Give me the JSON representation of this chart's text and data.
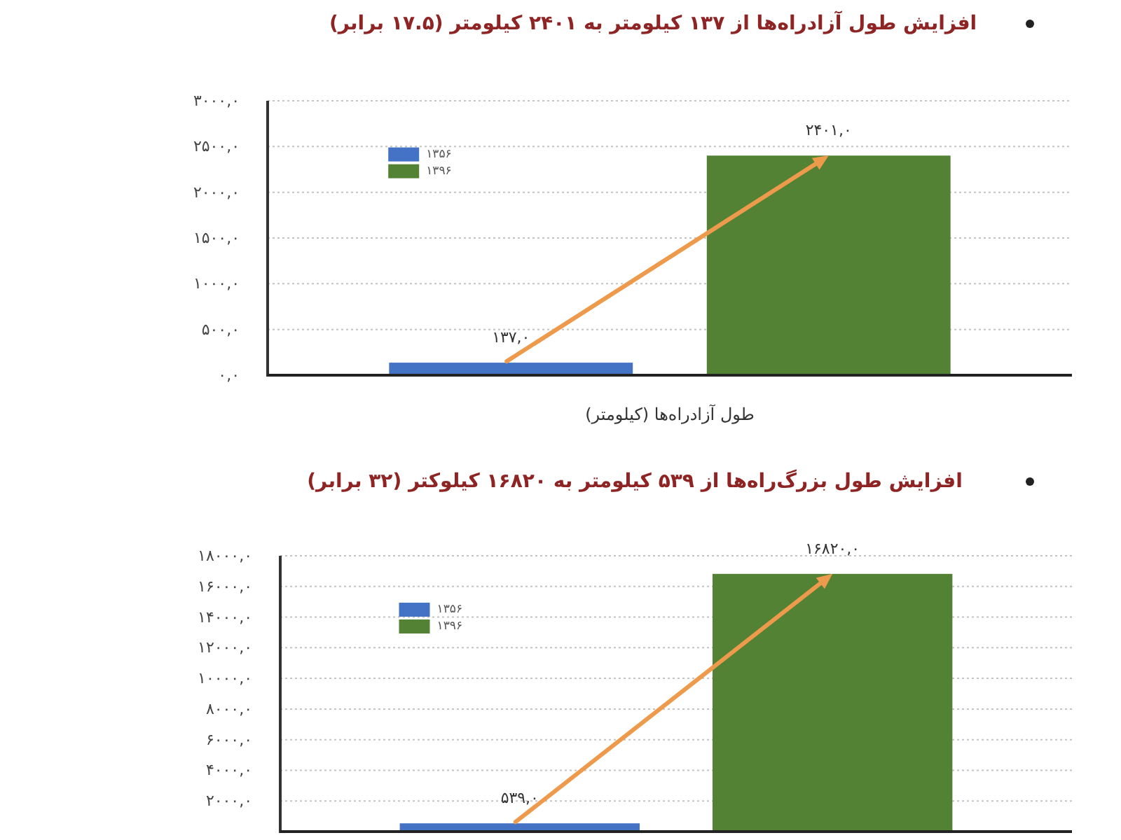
{
  "chart_data": [
    {
      "type": "bar",
      "title": "افزایش طول آزادراه‌ها از ۱۳۷ کیلومتر به ۲۴۰۱ کیلومتر (۱۷.۵ برابر)",
      "categories": [
        "طول آزادراه‌ها (کیلومتر)"
      ],
      "series": [
        {
          "name": "۱۳۵۶",
          "color": "#4472c4",
          "values": [
            137
          ],
          "value_labels": [
            "۱۳۷,۰"
          ]
        },
        {
          "name": "۱۳۹۶",
          "color": "#548235",
          "values": [
            2401
          ],
          "value_labels": [
            "۲۴۰۱,۰"
          ]
        }
      ],
      "ylim": [
        0,
        3000
      ],
      "yticks": [
        {
          "value": 0,
          "label": "۰,۰"
        },
        {
          "value": 500,
          "label": "۵۰۰,۰"
        },
        {
          "value": 1000,
          "label": "۱۰۰۰,۰"
        },
        {
          "value": 1500,
          "label": "۱۵۰۰,۰"
        },
        {
          "value": 2000,
          "label": "۲۰۰۰,۰"
        },
        {
          "value": 2500,
          "label": "۲۵۰۰,۰"
        },
        {
          "value": 3000,
          "label": "۳۰۰۰,۰"
        }
      ],
      "grid": "y",
      "legend": "top left"
    },
    {
      "type": "bar",
      "title": "افزایش طول بزرگ‌راه‌ها از ۵۳۹ کیلومتر به ۱۶۸۲۰ کیلوکتر (۳۲ برابر)",
      "categories": [
        null
      ],
      "series": [
        {
          "name": "۱۳۵۶",
          "color": "#4472c4",
          "values": [
            539
          ],
          "value_labels": [
            "۵۳۹,۰"
          ]
        },
        {
          "name": "۱۳۹۶",
          "color": "#548235",
          "values": [
            16820
          ],
          "value_labels": [
            "۱۶۸۲۰,۰"
          ]
        }
      ],
      "ylim": [
        0,
        18000
      ],
      "yticks": [
        {
          "value": 2000,
          "label": "۲۰۰۰,۰"
        },
        {
          "value": 4000,
          "label": "۴۰۰۰,۰"
        },
        {
          "value": 6000,
          "label": "۶۰۰۰,۰"
        },
        {
          "value": 8000,
          "label": "۸۰۰۰,۰"
        },
        {
          "value": 10000,
          "label": "۱۰۰۰۰,۰"
        },
        {
          "value": 12000,
          "label": "۱۲۰۰۰,۰"
        },
        {
          "value": 14000,
          "label": "۱۴۰۰۰,۰"
        },
        {
          "value": 16000,
          "label": "۱۶۰۰۰,۰"
        },
        {
          "value": 18000,
          "label": "۱۸۰۰۰,۰"
        }
      ],
      "grid": "y",
      "legend": "top left"
    }
  ]
}
